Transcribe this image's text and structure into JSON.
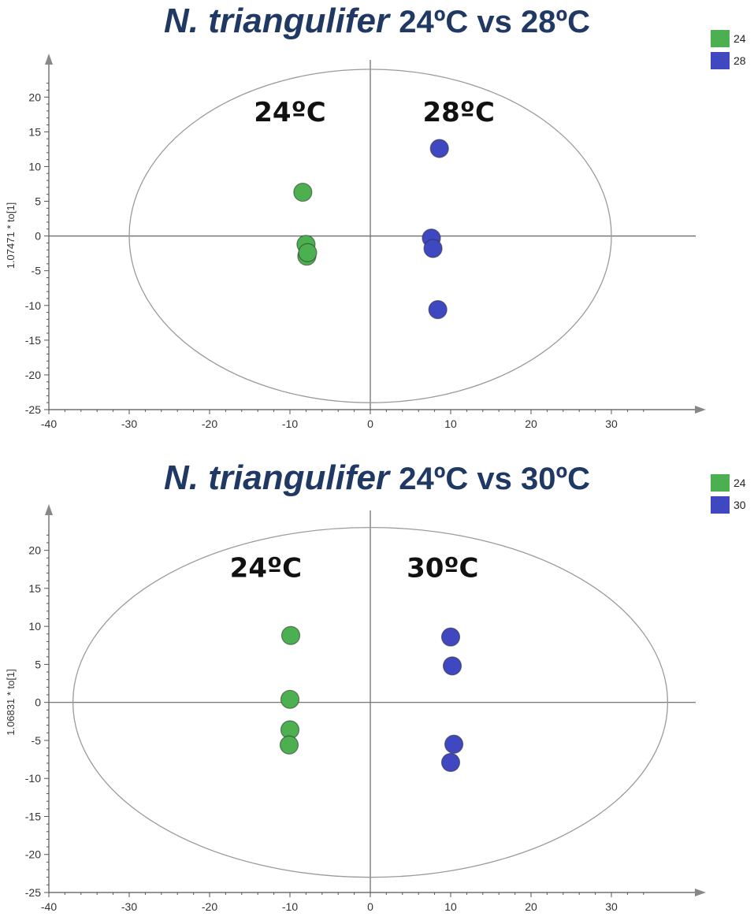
{
  "colors": {
    "green": "#4caf50",
    "blue": "#3f48c0",
    "title": "#1f3864",
    "axis": "#555555",
    "grid": "#dddddd",
    "ellipse": "#9a9a9a"
  },
  "chart_data": [
    {
      "type": "scatter",
      "title_species": "N. triangulifer",
      "title_comparison": "24ºC vs 28ºC",
      "ylabel": "1.07471 * to[1]",
      "xlim": [
        -40,
        40
      ],
      "ylim": [
        -25,
        24
      ],
      "xticks": [
        -40,
        -30,
        -20,
        -10,
        0,
        10,
        20,
        30
      ],
      "yticks": [
        -25,
        -20,
        -15,
        -10,
        -5,
        0,
        5,
        10,
        15,
        20
      ],
      "ellipse": {
        "cx": 0,
        "cy": 0,
        "rx": 30,
        "ry": 24
      },
      "group_labels": [
        {
          "text": "24ºC",
          "x": -10,
          "y": 16.5
        },
        {
          "text": "28ºC",
          "x": 11,
          "y": 16.5
        }
      ],
      "legend": [
        "24",
        "28"
      ],
      "series": [
        {
          "name": "24",
          "color": "#4caf50",
          "points": [
            [
              -8.4,
              6.3
            ],
            [
              -8.0,
              -1.2
            ],
            [
              -7.9,
              -2.9
            ],
            [
              -7.8,
              -2.4
            ]
          ]
        },
        {
          "name": "28",
          "color": "#3f48c0",
          "points": [
            [
              8.6,
              12.6
            ],
            [
              7.6,
              -0.3
            ],
            [
              7.8,
              -1.8
            ],
            [
              8.4,
              -10.6
            ]
          ]
        }
      ]
    },
    {
      "type": "scatter",
      "title_species": "N. triangulifer",
      "title_comparison": "24ºC vs 30ºC",
      "ylabel": "1.06831 * to[1]",
      "xlim": [
        -40,
        40
      ],
      "ylim": [
        -25,
        24
      ],
      "xticks": [
        -40,
        -30,
        -20,
        -10,
        0,
        10,
        20,
        30
      ],
      "yticks": [
        -25,
        -20,
        -15,
        -10,
        -5,
        0,
        5,
        10,
        15,
        20
      ],
      "ellipse": {
        "cx": 0,
        "cy": 0,
        "rx": 37,
        "ry": 23
      },
      "group_labels": [
        {
          "text": "24ºC",
          "x": -13,
          "y": 16.5
        },
        {
          "text": "30ºC",
          "x": 9,
          "y": 16.5
        }
      ],
      "legend": [
        "24",
        "30"
      ],
      "series": [
        {
          "name": "24",
          "color": "#4caf50",
          "points": [
            [
              -9.9,
              8.8
            ],
            [
              -10.0,
              0.4
            ],
            [
              -10.0,
              -3.6
            ],
            [
              -10.1,
              -5.6
            ]
          ]
        },
        {
          "name": "30",
          "color": "#3f48c0",
          "points": [
            [
              10.0,
              8.6
            ],
            [
              10.2,
              4.8
            ],
            [
              10.4,
              -5.5
            ],
            [
              10.0,
              -7.9
            ]
          ]
        }
      ]
    }
  ]
}
